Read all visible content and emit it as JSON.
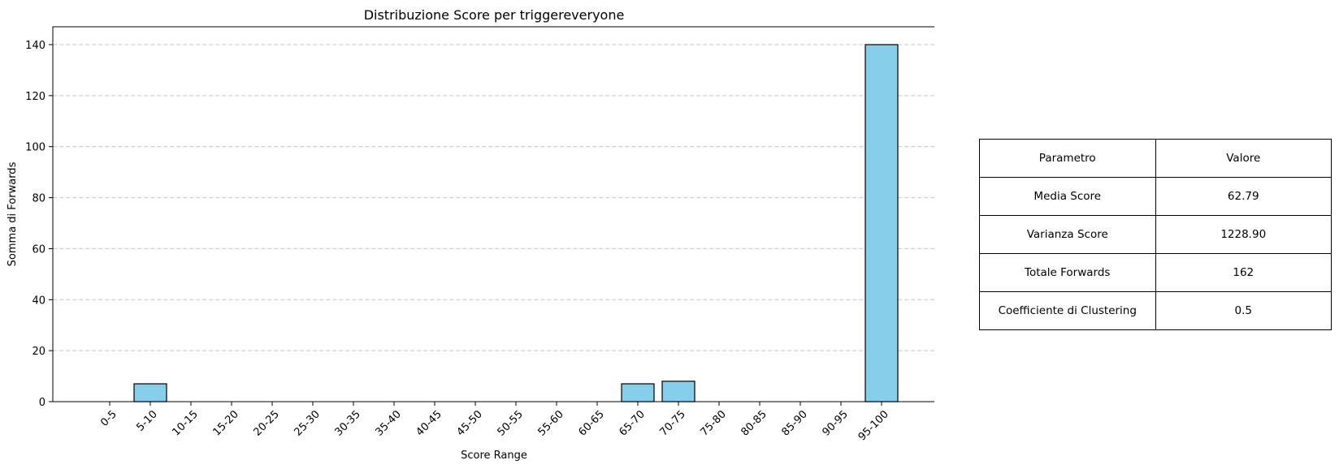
{
  "chart_data": {
    "type": "bar",
    "title": "Distribuzione Score per triggereveryone",
    "xlabel": "Score Range",
    "ylabel": "Somma di Forwards",
    "categories": [
      "0-5",
      "5-10",
      "10-15",
      "15-20",
      "20-25",
      "25-30",
      "30-35",
      "35-40",
      "40-45",
      "45-50",
      "50-55",
      "55-60",
      "60-65",
      "65-70",
      "70-75",
      "75-80",
      "80-85",
      "85-90",
      "90-95",
      "95-100"
    ],
    "values": [
      0,
      7,
      0,
      0,
      0,
      0,
      0,
      0,
      0,
      0,
      0,
      0,
      0,
      7,
      8,
      0,
      0,
      0,
      0,
      140
    ],
    "ylim": [
      0,
      147
    ],
    "yticks": [
      0,
      20,
      40,
      60,
      80,
      100,
      120,
      140
    ],
    "grid": "y dashed",
    "bar_color": "#87ceeb",
    "edge_color": "#000000"
  },
  "table": {
    "header": [
      "Parametro",
      "Valore"
    ],
    "rows": [
      [
        "Media Score",
        "62.79"
      ],
      [
        "Varianza Score",
        "1228.90"
      ],
      [
        "Totale Forwards",
        "162"
      ],
      [
        "Coefficiente di Clustering",
        "0.5"
      ]
    ]
  }
}
